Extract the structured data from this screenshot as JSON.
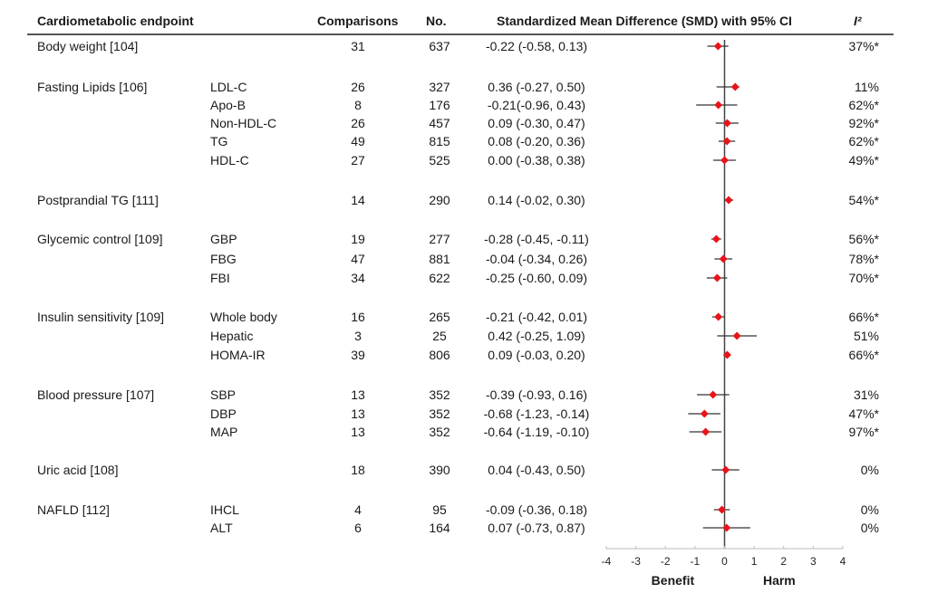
{
  "headers": {
    "endpoint": "Cardiometabolic endpoint",
    "comparisons": "Comparisons",
    "no": "No.",
    "smd": "Standardized Mean Difference (SMD) with 95% CI",
    "i2": "I²"
  },
  "rows": [
    {
      "group": "Body weight [104]",
      "sub": "",
      "comparisons": "31",
      "no": "637",
      "smd_text": "-0.22 (-0.58, 0.13)",
      "i2": "37%*"
    },
    {
      "group": "Fasting Lipids [106]",
      "sub": "LDL-C",
      "comparisons": "26",
      "no": "327",
      "smd_text": "0.36 (-0.27, 0.50)",
      "i2": "11%"
    },
    {
      "group": "",
      "sub": "Apo-B",
      "comparisons": "8",
      "no": "176",
      "smd_text": "-0.21(-0.96, 0.43)",
      "i2": "62%*"
    },
    {
      "group": "",
      "sub": "Non-HDL-C",
      "comparisons": "26",
      "no": "457",
      "smd_text": "0.09 (-0.30, 0.47)",
      "i2": "92%*"
    },
    {
      "group": "",
      "sub": "TG",
      "comparisons": "49",
      "no": "815",
      "smd_text": "0.08 (-0.20, 0.36)",
      "i2": "62%*"
    },
    {
      "group": "",
      "sub": "HDL-C",
      "comparisons": "27",
      "no": "525",
      "smd_text": "0.00 (-0.38, 0.38)",
      "i2": "49%*"
    },
    {
      "group": "Postprandial TG [111]",
      "sub": "",
      "comparisons": "14",
      "no": "290",
      "smd_text": "0.14 (-0.02, 0.30)",
      "i2": "54%*"
    },
    {
      "group": "Glycemic control [109]",
      "sub": "GBP",
      "comparisons": "19",
      "no": "277",
      "smd_text": "-0.28 (-0.45, -0.11)",
      "i2": "56%*"
    },
    {
      "group": "",
      "sub": "FBG",
      "comparisons": "47",
      "no": "881",
      "smd_text": "-0.04 (-0.34, 0.26)",
      "i2": "78%*"
    },
    {
      "group": "",
      "sub": "FBI",
      "comparisons": "34",
      "no": "622",
      "smd_text": "-0.25 (-0.60, 0.09)",
      "i2": "70%*"
    },
    {
      "group": "Insulin sensitivity [109]",
      "sub": "Whole body",
      "comparisons": "16",
      "no": "265",
      "smd_text": "-0.21 (-0.42, 0.01)",
      "i2": "66%*"
    },
    {
      "group": "",
      "sub": "Hepatic",
      "comparisons": "3",
      "no": "25",
      "smd_text": "0.42 (-0.25, 1.09)",
      "i2": "51%"
    },
    {
      "group": "",
      "sub": "HOMA-IR",
      "comparisons": "39",
      "no": "806",
      "smd_text": "0.09 (-0.03, 0.20)",
      "i2": "66%*"
    },
    {
      "group": "Blood pressure [107]",
      "sub": "SBP",
      "comparisons": "13",
      "no": "352",
      "smd_text": "-0.39 (-0.93, 0.16)",
      "i2": "31%"
    },
    {
      "group": "",
      "sub": "DBP",
      "comparisons": "13",
      "no": "352",
      "smd_text": "-0.68 (-1.23, -0.14)",
      "i2": "47%*"
    },
    {
      "group": "",
      "sub": "MAP",
      "comparisons": "13",
      "no": "352",
      "smd_text": "-0.64 (-1.19, -0.10)",
      "i2": "97%*"
    },
    {
      "group": "Uric acid [108]",
      "sub": "",
      "comparisons": "18",
      "no": "390",
      "smd_text": "0.04 (-0.43, 0.50)",
      "i2": "0%"
    },
    {
      "group": "NAFLD [112]",
      "sub": "IHCL",
      "comparisons": "4",
      "no": "95",
      "smd_text": "-0.09 (-0.36, 0.18)",
      "i2": "0%"
    },
    {
      "group": "",
      "sub": "ALT",
      "comparisons": "6",
      "no": "164",
      "smd_text": "0.07 (-0.73, 0.87)",
      "i2": "0%"
    }
  ],
  "chart_data": {
    "type": "scatter",
    "subtype": "forest-plot",
    "title": "Standardized Mean Difference (SMD) with 95% CI",
    "xlabel_left": "Benefit",
    "xlabel_right": "Harm",
    "xlim": [
      -4,
      4
    ],
    "xticks": [
      -4,
      -3,
      -2,
      -1,
      0,
      1,
      2,
      3,
      4
    ],
    "reference_line": 0,
    "marker_color": "#e8141a",
    "line_color": "#333333",
    "points": [
      {
        "label": "Body weight",
        "estimate": -0.22,
        "lower": -0.58,
        "upper": 0.13
      },
      {
        "label": "LDL-C",
        "estimate": 0.36,
        "lower": -0.27,
        "upper": 0.5
      },
      {
        "label": "Apo-B",
        "estimate": -0.21,
        "lower": -0.96,
        "upper": 0.43
      },
      {
        "label": "Non-HDL-C",
        "estimate": 0.09,
        "lower": -0.3,
        "upper": 0.47
      },
      {
        "label": "TG",
        "estimate": 0.08,
        "lower": -0.2,
        "upper": 0.36
      },
      {
        "label": "HDL-C",
        "estimate": 0.0,
        "lower": -0.38,
        "upper": 0.38
      },
      {
        "label": "Postprandial TG",
        "estimate": 0.14,
        "lower": -0.02,
        "upper": 0.3
      },
      {
        "label": "GBP",
        "estimate": -0.28,
        "lower": -0.45,
        "upper": -0.11
      },
      {
        "label": "FBG",
        "estimate": -0.04,
        "lower": -0.34,
        "upper": 0.26
      },
      {
        "label": "FBI",
        "estimate": -0.25,
        "lower": -0.6,
        "upper": 0.09
      },
      {
        "label": "Whole body",
        "estimate": -0.21,
        "lower": -0.42,
        "upper": 0.01
      },
      {
        "label": "Hepatic",
        "estimate": 0.42,
        "lower": -0.25,
        "upper": 1.09
      },
      {
        "label": "HOMA-IR",
        "estimate": 0.09,
        "lower": -0.03,
        "upper": 0.2
      },
      {
        "label": "SBP",
        "estimate": -0.39,
        "lower": -0.93,
        "upper": 0.16
      },
      {
        "label": "DBP",
        "estimate": -0.68,
        "lower": -1.23,
        "upper": -0.14
      },
      {
        "label": "MAP",
        "estimate": -0.64,
        "lower": -1.19,
        "upper": -0.1
      },
      {
        "label": "Uric acid",
        "estimate": 0.04,
        "lower": -0.43,
        "upper": 0.5
      },
      {
        "label": "IHCL",
        "estimate": -0.09,
        "lower": -0.36,
        "upper": 0.18
      },
      {
        "label": "ALT",
        "estimate": 0.07,
        "lower": -0.73,
        "upper": 0.87
      }
    ]
  }
}
